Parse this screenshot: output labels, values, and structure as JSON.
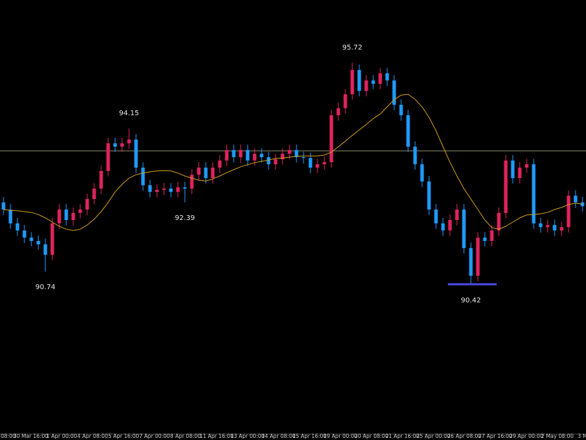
{
  "chart_data": {
    "type": "candlestick",
    "up_color": "#e0245e",
    "down_color": "#1e9bff",
    "ma_color": "#d4a017",
    "price_line_color": "#8c8c6e",
    "low_marker_color": "#4a4ae6",
    "open": [
      92.39,
      92.22,
      91.89,
      91.72,
      91.55,
      91.47,
      91.39,
      91.14,
      91.89,
      92.22,
      91.97,
      92.14,
      92.22,
      92.47,
      92.72,
      93.14,
      93.8,
      93.72,
      93.8,
      93.89,
      93.22,
      92.8,
      92.64,
      92.69,
      92.72,
      92.64,
      92.75,
      92.72,
      93.05,
      93.22,
      92.97,
      93.22,
      93.39,
      93.64,
      93.47,
      93.64,
      93.39,
      93.55,
      93.47,
      93.3,
      93.42,
      93.55,
      93.64,
      93.47,
      93.45,
      93.22,
      93.3,
      93.35,
      94.47,
      94.64,
      94.97,
      95.55,
      95.05,
      95.3,
      95.22,
      95.47,
      95.3,
      94.72,
      94.47,
      93.72,
      93.3,
      92.89,
      92.22,
      91.89,
      91.72,
      91.97,
      92.22,
      91.3,
      90.64,
      91.55,
      91.47,
      91.72,
      92.14,
      93.39,
      92.97,
      93.22,
      93.3,
      91.89,
      91.8,
      91.85,
      91.72,
      91.8,
      92.55,
      92.39
    ],
    "high": [
      92.52,
      92.35,
      92.02,
      91.85,
      91.68,
      91.6,
      91.52,
      92.02,
      92.35,
      92.35,
      92.27,
      92.35,
      92.6,
      92.85,
      93.27,
      93.93,
      93.93,
      93.93,
      94.15,
      94.02,
      93.35,
      92.93,
      92.82,
      92.85,
      92.85,
      92.88,
      92.88,
      93.18,
      93.35,
      93.35,
      93.35,
      93.52,
      93.77,
      93.77,
      93.77,
      93.77,
      93.68,
      93.68,
      93.6,
      93.55,
      93.68,
      93.77,
      93.77,
      93.6,
      93.58,
      93.43,
      93.48,
      94.6,
      94.77,
      95.1,
      95.72,
      95.68,
      95.43,
      95.43,
      95.6,
      95.6,
      95.43,
      94.85,
      94.6,
      93.85,
      93.43,
      93.02,
      92.35,
      92.02,
      92.1,
      92.35,
      92.35,
      91.43,
      91.68,
      91.68,
      91.85,
      92.27,
      93.52,
      93.52,
      93.35,
      93.43,
      93.43,
      92.02,
      91.98,
      91.98,
      91.93,
      92.68,
      92.68,
      92.52
    ],
    "low": [
      92.09,
      91.76,
      91.59,
      91.42,
      91.34,
      91.26,
      90.74,
      91.01,
      91.76,
      91.84,
      91.84,
      92.01,
      92.09,
      92.34,
      92.59,
      93.01,
      93.59,
      93.59,
      93.67,
      93.09,
      92.67,
      92.51,
      92.51,
      92.56,
      92.51,
      92.51,
      92.39,
      92.59,
      92.92,
      92.84,
      92.84,
      93.09,
      93.26,
      93.34,
      93.34,
      93.26,
      93.26,
      93.34,
      93.17,
      93.17,
      93.29,
      93.42,
      93.34,
      93.32,
      93.09,
      93.09,
      93.17,
      93.22,
      94.34,
      94.51,
      94.84,
      94.92,
      94.92,
      95.09,
      95.09,
      95.17,
      94.59,
      94.34,
      93.59,
      93.17,
      92.76,
      92.09,
      91.76,
      91.59,
      91.59,
      91.84,
      91.17,
      90.42,
      90.51,
      91.34,
      91.34,
      91.59,
      92.01,
      92.84,
      92.84,
      93.09,
      91.76,
      91.67,
      91.67,
      91.59,
      91.59,
      91.67,
      92.26,
      92.17
    ],
    "close": [
      92.22,
      91.89,
      91.72,
      91.55,
      91.47,
      91.39,
      91.14,
      91.89,
      92.22,
      91.97,
      92.14,
      92.22,
      92.47,
      92.72,
      93.14,
      93.8,
      93.72,
      93.8,
      93.89,
      93.22,
      92.8,
      92.64,
      92.69,
      92.72,
      92.64,
      92.75,
      92.72,
      93.05,
      93.22,
      92.97,
      93.22,
      93.39,
      93.64,
      93.47,
      93.64,
      93.39,
      93.55,
      93.47,
      93.3,
      93.42,
      93.55,
      93.64,
      93.47,
      93.45,
      93.22,
      93.3,
      93.35,
      94.47,
      94.64,
      94.97,
      95.55,
      95.05,
      95.3,
      95.22,
      95.47,
      95.3,
      94.72,
      94.47,
      93.72,
      93.3,
      92.89,
      92.22,
      91.89,
      91.72,
      91.97,
      92.22,
      91.3,
      90.64,
      91.55,
      91.47,
      91.72,
      92.14,
      93.39,
      92.97,
      93.22,
      93.3,
      91.89,
      91.8,
      91.85,
      91.72,
      91.8,
      92.55,
      92.39,
      92.3
    ],
    "ma": [
      92.22,
      92.2,
      92.19,
      92.17,
      92.15,
      92.1,
      92.02,
      91.92,
      91.82,
      91.75,
      91.72,
      91.75,
      91.85,
      91.99,
      92.17,
      92.39,
      92.64,
      92.82,
      92.97,
      93.05,
      93.09,
      93.12,
      93.14,
      93.15,
      93.14,
      93.09,
      93.02,
      92.97,
      92.92,
      92.9,
      92.95,
      93.02,
      93.1,
      93.17,
      93.24,
      93.29,
      93.34,
      93.37,
      93.4,
      93.44,
      93.45,
      93.47,
      93.49,
      93.5,
      93.5,
      93.5,
      93.52,
      93.59,
      93.72,
      93.85,
      93.99,
      94.12,
      94.25,
      94.39,
      94.5,
      94.67,
      94.84,
      94.95,
      94.97,
      94.85,
      94.67,
      94.42,
      94.1,
      93.72,
      93.35,
      93.02,
      92.72,
      92.47,
      92.22,
      91.97,
      91.79,
      91.75,
      91.82,
      91.92,
      92.02,
      92.09,
      92.1,
      92.12,
      92.15,
      92.22,
      92.27,
      92.34,
      92.37,
      92.35
    ],
    "price_line": 93.62,
    "annotations": [
      90.74,
      94.15,
      92.39,
      95.72,
      90.42
    ],
    "x_labels": [
      "08:00",
      "30 Mar 16:00",
      "1 Apr 00:00",
      "4 Apr 08:00",
      "5 Apr 16:00",
      "7 Apr 00:00",
      "8 Apr 08:00",
      "11 Apr 16:00",
      "13 Apr 00:00",
      "14 Apr 08:00",
      "15 Apr 16:00",
      "19 Apr 00:00",
      "20 Apr 08:00",
      "21 Apr 16:00",
      "25 Apr 00:00",
      "26 Apr 08:00",
      "27 Apr 16:00",
      "29 Apr 00:00",
      "2 May 08:00",
      "3 M"
    ]
  }
}
